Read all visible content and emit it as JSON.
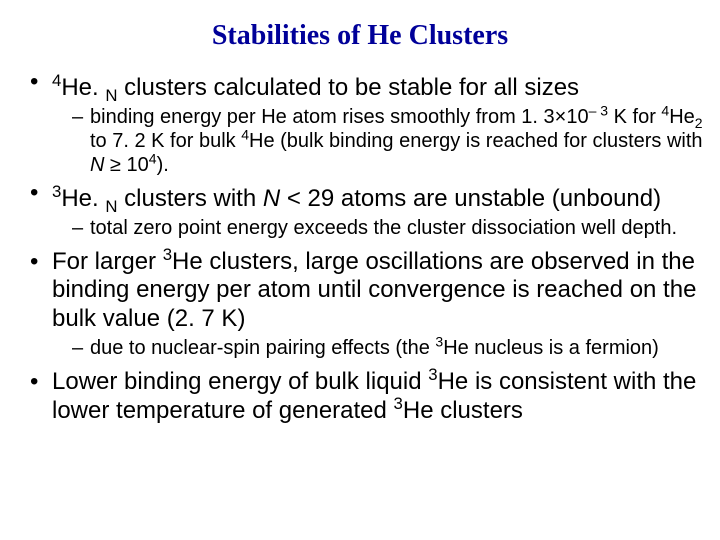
{
  "title": "Stabilities of He Clusters",
  "colors": {
    "title": "#000099",
    "body": "#000000",
    "background": "#ffffff"
  },
  "fonts": {
    "title_family": "Times New Roman",
    "title_weight": "bold",
    "title_size_pt": 28,
    "body_family": "Arial",
    "bullet1_size_pt": 24,
    "bullet2_size_pt": 20
  },
  "bullets": [
    {
      "level": 1,
      "html": "<sup>4</sup>He. <sub>N</sub> clusters calculated to be stable for all sizes"
    },
    {
      "level": 2,
      "html": "binding energy per He atom rises smoothly from 1. 3×10<sup>– 3</sup> K for <sup>4</sup>He<sub>2</sub> to 7. 2 K for bulk <sup>4</sup>He (bulk binding energy is reached for clusters with <span class=\"italic\">N</span> ≥ 10<sup>4</sup>)."
    },
    {
      "level": 1,
      "html": "<sup>3</sup>He. <sub>N</sub> clusters with <span class=\"italic\">N</span> < 29 atoms are unstable (unbound)"
    },
    {
      "level": 2,
      "html": "total zero point energy exceeds the cluster dissociation well depth."
    },
    {
      "level": 1,
      "html": "For larger <sup>3</sup>He clusters, large oscillations are observed in the binding energy per atom until convergence is reached on the bulk value (2. 7 K)"
    },
    {
      "level": 2,
      "html": "due to nuclear-spin pairing effects (the <sup>3</sup>He nucleus is a fermion)"
    },
    {
      "level": 1,
      "html": "Lower binding energy of bulk liquid <sup>3</sup>He is consistent with the lower temperature of generated <sup>3</sup>He clusters"
    }
  ]
}
